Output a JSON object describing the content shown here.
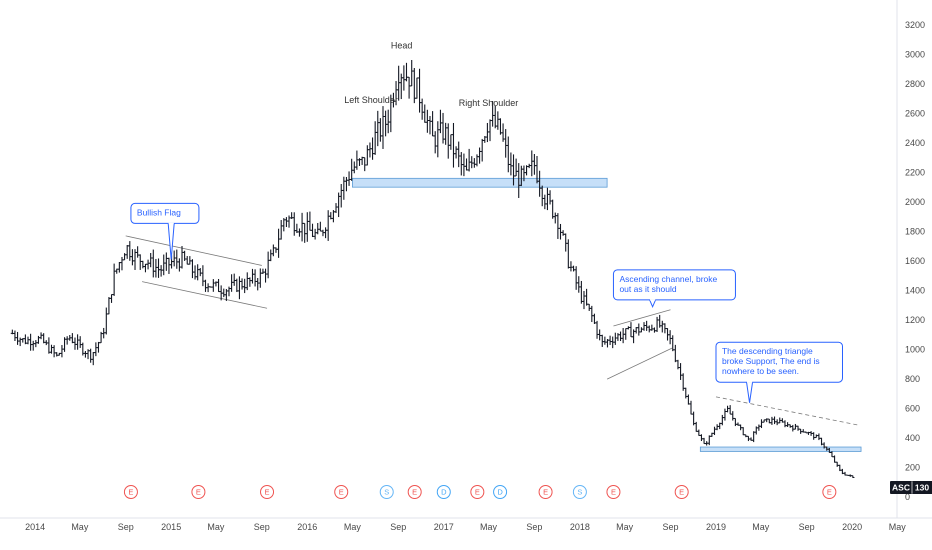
{
  "chart_data": {
    "type": "bar",
    "style": "ohlc",
    "symbol": "ASC",
    "last_price": "130",
    "price_axis": {
      "ylim": [
        -100,
        3300
      ],
      "ticks": [
        "3200",
        "3000",
        "2800",
        "2600",
        "2400",
        "2200",
        "2000",
        "1800",
        "1600",
        "1400",
        "1200",
        "1000",
        "800",
        "600",
        "400",
        "200",
        "0"
      ]
    },
    "time_axis": {
      "xlim": [
        "2013-10-15",
        "2020-06-15"
      ],
      "ticks": [
        {
          "date": "2014-01-01",
          "label": "2014"
        },
        {
          "date": "2014-05-01",
          "label": "May"
        },
        {
          "date": "2014-09-01",
          "label": "Sep"
        },
        {
          "date": "2015-01-01",
          "label": "2015"
        },
        {
          "date": "2015-05-01",
          "label": "May"
        },
        {
          "date": "2015-09-01",
          "label": "Sep"
        },
        {
          "date": "2016-01-01",
          "label": "2016"
        },
        {
          "date": "2016-05-01",
          "label": "May"
        },
        {
          "date": "2016-09-01",
          "label": "Sep"
        },
        {
          "date": "2017-01-01",
          "label": "2017"
        },
        {
          "date": "2017-05-01",
          "label": "May"
        },
        {
          "date": "2017-09-01",
          "label": "Sep"
        },
        {
          "date": "2018-01-01",
          "label": "2018"
        },
        {
          "date": "2018-05-01",
          "label": "May"
        },
        {
          "date": "2018-09-01",
          "label": "Sep"
        },
        {
          "date": "2019-01-01",
          "label": "2019"
        },
        {
          "date": "2019-05-01",
          "label": "May"
        },
        {
          "date": "2019-09-01",
          "label": "Sep"
        },
        {
          "date": "2020-01-01",
          "label": "2020"
        },
        {
          "date": "2020-05-01",
          "label": "May"
        }
      ]
    },
    "anchors": [
      [
        "2013-11-01",
        1110
      ],
      [
        "2013-12-01",
        1060
      ],
      [
        "2014-01-15",
        1070
      ],
      [
        "2014-03-01",
        950
      ],
      [
        "2014-04-01",
        1090
      ],
      [
        "2014-05-01",
        1020
      ],
      [
        "2014-06-01",
        960
      ],
      [
        "2014-07-01",
        1100
      ],
      [
        "2014-08-01",
        1500
      ],
      [
        "2014-09-01",
        1700
      ],
      [
        "2014-10-01",
        1620
      ],
      [
        "2014-11-01",
        1590
      ],
      [
        "2014-12-01",
        1540
      ],
      [
        "2015-01-01",
        1590
      ],
      [
        "2015-02-01",
        1610
      ],
      [
        "2015-03-01",
        1530
      ],
      [
        "2015-04-01",
        1460
      ],
      [
        "2015-05-01",
        1420
      ],
      [
        "2015-06-01",
        1410
      ],
      [
        "2015-07-01",
        1440
      ],
      [
        "2015-08-01",
        1460
      ],
      [
        "2015-09-01",
        1500
      ],
      [
        "2015-10-01",
        1640
      ],
      [
        "2015-11-01",
        1900
      ],
      [
        "2015-12-15",
        1840
      ],
      [
        "2016-02-01",
        1760
      ],
      [
        "2016-03-15",
        2000
      ],
      [
        "2016-05-01",
        2230
      ],
      [
        "2016-06-01",
        2270
      ],
      [
        "2016-07-01",
        2440
      ],
      [
        "2016-08-01",
        2550
      ],
      [
        "2016-09-01",
        2900
      ],
      [
        "2016-10-01",
        2850
      ],
      [
        "2016-11-01",
        2700
      ],
      [
        "2016-12-01",
        2420
      ],
      [
        "2017-01-01",
        2480
      ],
      [
        "2017-02-01",
        2330
      ],
      [
        "2017-03-01",
        2180
      ],
      [
        "2017-04-01",
        2350
      ],
      [
        "2017-05-01",
        2560
      ],
      [
        "2017-06-01",
        2480
      ],
      [
        "2017-07-01",
        2200
      ],
      [
        "2017-08-01",
        2150
      ],
      [
        "2017-09-01",
        2250
      ],
      [
        "2017-10-01",
        2020
      ],
      [
        "2017-11-01",
        1900
      ],
      [
        "2017-12-01",
        1600
      ],
      [
        "2018-01-01",
        1380
      ],
      [
        "2018-02-01",
        1230
      ],
      [
        "2018-03-01",
        1040
      ],
      [
        "2018-04-01",
        1080
      ],
      [
        "2018-05-01",
        1110
      ],
      [
        "2018-06-01",
        1130
      ],
      [
        "2018-07-01",
        1150
      ],
      [
        "2018-08-01",
        1170
      ],
      [
        "2018-09-01",
        1060
      ],
      [
        "2018-10-01",
        800
      ],
      [
        "2018-11-01",
        500
      ],
      [
        "2018-12-01",
        350
      ],
      [
        "2019-01-01",
        480
      ],
      [
        "2019-02-01",
        590
      ],
      [
        "2019-03-01",
        480
      ],
      [
        "2019-04-01",
        380
      ],
      [
        "2019-05-01",
        510
      ],
      [
        "2019-06-01",
        520
      ],
      [
        "2019-07-01",
        500
      ],
      [
        "2019-08-01",
        470
      ],
      [
        "2019-09-01",
        440
      ],
      [
        "2019-10-01",
        400
      ],
      [
        "2019-11-01",
        300
      ],
      [
        "2019-12-01",
        170
      ],
      [
        "2020-01-05",
        130
      ]
    ],
    "annotations": [
      {
        "text": "Head",
        "date": "2016-09-10",
        "price": 3040
      },
      {
        "text": "Left Shoulder",
        "date": "2016-06-20",
        "price": 2670
      },
      {
        "text": "Right Shoulder",
        "date": "2017-05-01",
        "price": 2650
      }
    ],
    "callouts": [
      {
        "lines": [
          "Bullish Flag"
        ],
        "date": "2014-09-15",
        "price": 1990,
        "tip_date": "2015-01-01",
        "tip_price": 1610
      },
      {
        "lines": [
          "Ascending channel, broke",
          "out as it should"
        ],
        "date": "2018-04-01",
        "price": 1540,
        "tip_date": "2018-07-15",
        "tip_price": 1290
      },
      {
        "lines": [
          "The descending triangle",
          "broke Support, The end is",
          "nowhere to be seen."
        ],
        "date": "2019-01-01",
        "price": 1050,
        "tip_date": "2019-04-01",
        "tip_price": 640
      }
    ],
    "zones": [
      {
        "from": "2016-05-01",
        "to": "2018-03-15",
        "low": 2100,
        "high": 2160
      },
      {
        "from": "2018-11-20",
        "to": "2020-01-25",
        "low": 310,
        "high": 340
      }
    ],
    "lines": [
      {
        "from": [
          "2014-09-01",
          1770
        ],
        "to": [
          "2015-09-01",
          1570
        ]
      },
      {
        "from": [
          "2014-10-15",
          1460
        ],
        "to": [
          "2015-09-15",
          1280
        ]
      },
      {
        "from": [
          "2018-04-01",
          1160
        ],
        "to": [
          "2018-09-01",
          1270
        ]
      },
      {
        "from": [
          "2018-03-15",
          800
        ],
        "to": [
          "2018-09-05",
          1010
        ]
      },
      {
        "from": [
          "2019-01-01",
          680
        ],
        "to": [
          "2020-01-15",
          490
        ]
      }
    ],
    "events": [
      {
        "letter": "E",
        "date": "2014-09-15",
        "color": "#ef5350"
      },
      {
        "letter": "E",
        "date": "2015-03-15",
        "color": "#ef5350"
      },
      {
        "letter": "E",
        "date": "2015-09-15",
        "color": "#ef5350"
      },
      {
        "letter": "E",
        "date": "2016-04-01",
        "color": "#ef5350"
      },
      {
        "letter": "S",
        "date": "2016-08-01",
        "color": "#64b5f6"
      },
      {
        "letter": "E",
        "date": "2016-10-15",
        "color": "#ef5350"
      },
      {
        "letter": "D",
        "date": "2017-01-01",
        "color": "#42a5f5"
      },
      {
        "letter": "E",
        "date": "2017-04-01",
        "color": "#ef5350"
      },
      {
        "letter": "D",
        "date": "2017-06-01",
        "color": "#42a5f5"
      },
      {
        "letter": "E",
        "date": "2017-10-01",
        "color": "#ef5350"
      },
      {
        "letter": "S",
        "date": "2018-01-01",
        "color": "#64b5f6"
      },
      {
        "letter": "E",
        "date": "2018-04-01",
        "color": "#ef5350"
      },
      {
        "letter": "E",
        "date": "2018-10-01",
        "color": "#ef5350"
      },
      {
        "letter": "E",
        "date": "2019-11-01",
        "color": "#ef5350"
      }
    ],
    "colors": {
      "bar": "#131722",
      "callout": "#2962ff",
      "zone": "#b3d4f5",
      "zone_border": "#5b9bd5",
      "trend": "#7a7a7a",
      "label_bg": "#131722"
    }
  }
}
